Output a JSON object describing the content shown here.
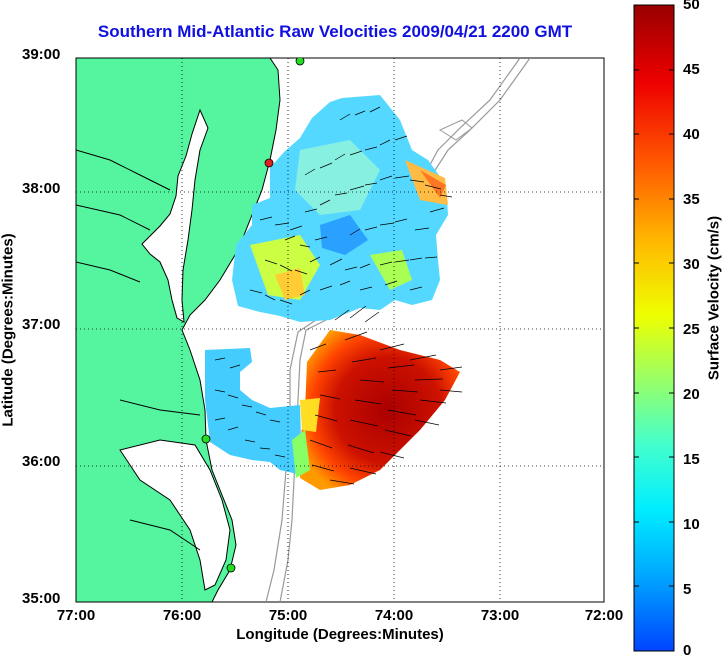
{
  "title": "Southern Mid-Atlantic Raw Velocities 2009/04/21 2200 GMT",
  "x_axis": {
    "label": "Longitude (Degrees:Minutes)",
    "ticks": [
      "77:00",
      "76:00",
      "75:00",
      "74:00",
      "73:00",
      "72:00"
    ]
  },
  "y_axis": {
    "label": "Latitude (Degrees:Minutes)",
    "ticks": [
      "39:00",
      "38:00",
      "37:00",
      "36:00",
      "35:00"
    ]
  },
  "colorbar": {
    "label": "Surface Velocity (cm/s)",
    "ticks": [
      "50",
      "45",
      "40",
      "35",
      "30",
      "25",
      "20",
      "15",
      "10",
      "5",
      "0"
    ],
    "min": 0,
    "max": 50,
    "colors": [
      "#0044ff",
      "#00aaff",
      "#00eeff",
      "#44ffcc",
      "#99ff66",
      "#eeff00",
      "#ffbb00",
      "#ff5500",
      "#ee0000",
      "#990000"
    ]
  },
  "colors": {
    "title": "#1010e0",
    "land": "#55f5a0",
    "water": "#ffffff",
    "coastline": "#000000",
    "bathymetry": "#999999",
    "grid": "#000000",
    "station_active": "#22dd22",
    "station_alert": "#dd2222"
  },
  "map": {
    "lon_range": [
      -77,
      -72
    ],
    "lat_range": [
      35,
      39
    ],
    "grid": "dotted",
    "stations": [
      {
        "lon": -74.85,
        "lat": 38.95,
        "status": "active"
      },
      {
        "lon": -75.14,
        "lat": 38.21,
        "status": "alert"
      },
      {
        "lon": -75.72,
        "lat": 36.2,
        "status": "active"
      },
      {
        "lon": -75.53,
        "lat": 35.24,
        "status": "active"
      }
    ]
  }
}
